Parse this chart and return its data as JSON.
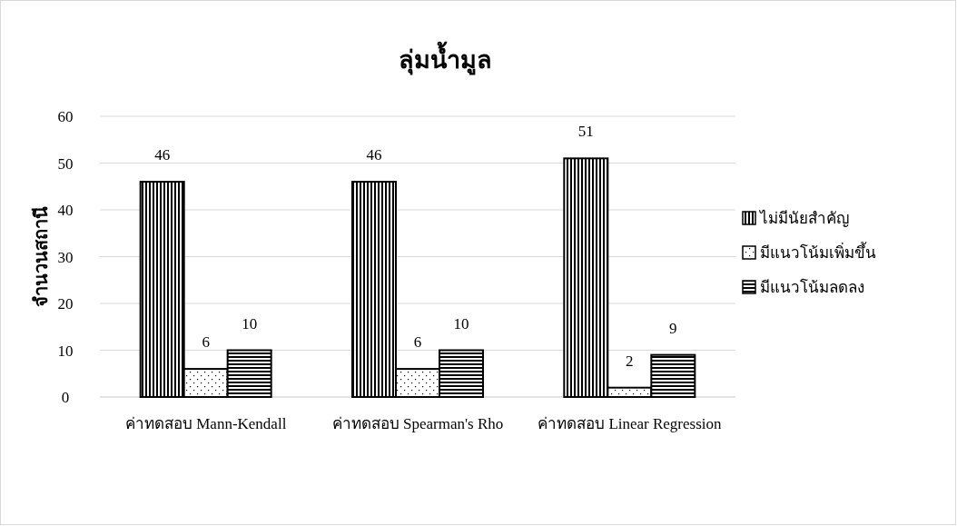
{
  "chart_data": {
    "type": "bar",
    "title": "ลุ่มน้ำมูล",
    "ylabel": "จำนวนสถานี",
    "categories": [
      "ค่าทดสอบ Mann-Kendall",
      "ค่าทดสอบ Spearman's Rho",
      "ค่าทดสอบ Linear Regression"
    ],
    "series": [
      {
        "name": "ไม่มีนัยสำคัญ",
        "color": "#000000",
        "values": [
          46,
          46,
          51
        ]
      },
      {
        "name": "มีแนวโน้มเพิ่มขึ้น",
        "color": "#000000",
        "values": [
          6,
          6,
          2
        ]
      },
      {
        "name": "มีแนวโน้มลดลง",
        "color": "#000000",
        "values": [
          10,
          10,
          9
        ]
      }
    ],
    "ylim": [
      0,
      60
    ],
    "yticks": [
      0,
      10,
      20,
      30,
      40,
      50,
      60
    ],
    "grid": "y",
    "legend": "right",
    "data_labels": true
  }
}
